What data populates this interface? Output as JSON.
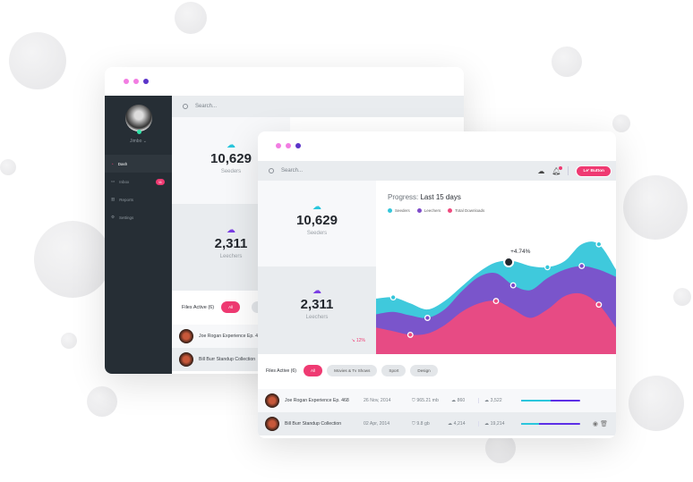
{
  "user": {
    "name": "Jimbo"
  },
  "sidebar": {
    "items": [
      {
        "label": "Dash",
        "icon": "gauge-icon",
        "active": true
      },
      {
        "label": "Inbox",
        "icon": "inbox-icon",
        "badge": "11"
      },
      {
        "label": "Reports",
        "icon": "bar-chart-icon"
      },
      {
        "label": "Settings",
        "icon": "gear-icon"
      }
    ]
  },
  "search": {
    "placeholder": "Search..."
  },
  "header": {
    "button_label": "Le' Button",
    "icons": [
      "cloud-upload-icon",
      "bell-icon"
    ]
  },
  "stats": {
    "seeders": {
      "value": "10,629",
      "label": "Seeders"
    },
    "leechers": {
      "value": "2,311",
      "label": "Leechers",
      "change": "12%"
    }
  },
  "chart_data": {
    "type": "area",
    "title_prefix": "Progress:",
    "title": "Last 15 days",
    "x": [
      1,
      2,
      3,
      4,
      5,
      6,
      7,
      8,
      9,
      10,
      11,
      12,
      13,
      14,
      15
    ],
    "series": [
      {
        "name": "Seeders",
        "color": "#35c6da",
        "values": [
          46,
          47,
          42,
          37,
          44,
          56,
          68,
          76,
          77,
          73,
          72,
          77,
          91,
          91,
          70
        ]
      },
      {
        "name": "Leechers",
        "color": "#7f4cc9",
        "values": [
          33,
          35,
          32,
          30,
          37,
          52,
          64,
          67,
          57,
          53,
          63,
          70,
          73,
          70,
          64
        ]
      },
      {
        "name": "Total Downloads",
        "color": "#ef4a7e",
        "values": [
          22,
          19,
          16,
          17,
          24,
          35,
          42,
          44,
          37,
          30,
          37,
          48,
          50,
          41,
          22
        ]
      }
    ],
    "annotation": {
      "text": "+4.74%",
      "x": 9
    },
    "legend": "top-left",
    "grid": false,
    "axes": false
  },
  "files": {
    "title": "Files Active (6)",
    "filters": [
      "All",
      "Movies & Tv Shows",
      "Sport",
      "Design"
    ],
    "rows": [
      {
        "name": "Joe Rogan Experience Ep. 468",
        "date": "26 Nov, 2014",
        "size": "965.21 mb",
        "up": "860",
        "down": "3,522",
        "progress": 0.5
      },
      {
        "name": "Bill Burr Standup Collection",
        "date": "02 Apr, 2014",
        "size": "9.8 gb",
        "up": "4,214",
        "down": "19,214",
        "progress": 0.3
      }
    ]
  }
}
